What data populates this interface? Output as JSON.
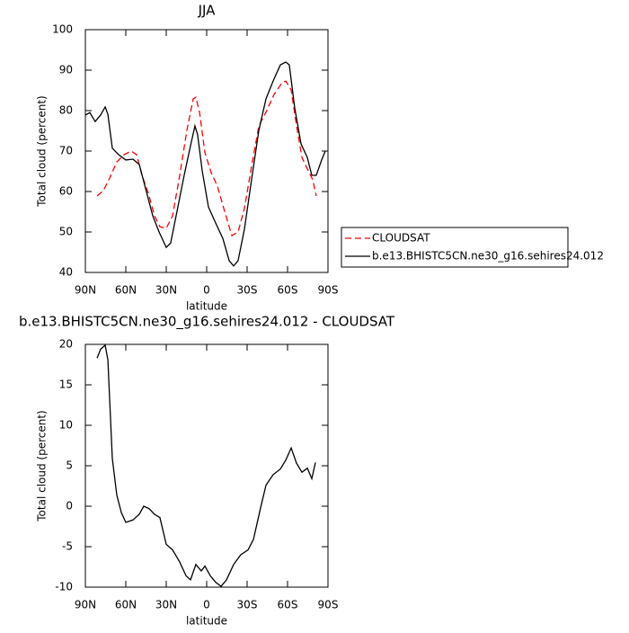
{
  "chart_data": [
    {
      "type": "line",
      "title": "JJA",
      "xlabel": "latitude",
      "ylabel": "Total cloud (percent)",
      "xlim": [
        90,
        -90
      ],
      "ylim": [
        40,
        100
      ],
      "xticks": [
        {
          "value": 90,
          "label": "90N"
        },
        {
          "value": 60,
          "label": "60N"
        },
        {
          "value": 30,
          "label": "30N"
        },
        0,
        {
          "value": -30,
          "label": "30S"
        },
        {
          "value": -60,
          "label": "60S"
        },
        {
          "value": -90,
          "label": "90S"
        }
      ],
      "yticks": [
        40,
        50,
        60,
        70,
        80,
        90,
        100
      ],
      "legend": "right",
      "series": [
        {
          "name": "CLOUDSAT",
          "color": "#ff0000",
          "line_style": "dashed",
          "x": [
            81.3,
            76.7,
            72,
            66.7,
            61.3,
            56,
            52,
            48,
            43.3,
            38.7,
            34.7,
            30,
            25.3,
            20,
            14.7,
            10,
            8,
            5.3,
            1.3,
            -3.3,
            -8,
            -13.3,
            -18.7,
            -23.3,
            -28,
            -33.3,
            -38.7,
            -44,
            -50,
            -56,
            -58.7,
            -62.7,
            -66.7,
            -70.7,
            -74.7,
            -78.7,
            -81.3
          ],
          "values": [
            58.9,
            60.2,
            63.3,
            67.3,
            69.1,
            70,
            69.1,
            64,
            59.6,
            54,
            51.3,
            50.9,
            54,
            64,
            75.1,
            82.9,
            83.3,
            79.6,
            69.6,
            64.7,
            61.3,
            55.1,
            49.1,
            50,
            55.8,
            66.2,
            76.2,
            79.6,
            84,
            86.9,
            87.3,
            85.1,
            76.2,
            68.4,
            65.6,
            62.9,
            58.9
          ]
        },
        {
          "name": "b.e13.BHISTC5CN.ne30_g16.sehires24.012",
          "color": "#000000",
          "line_style": "solid",
          "x": [
            90,
            86.7,
            82.7,
            78.7,
            75.3,
            73.3,
            70,
            65.3,
            60,
            54.7,
            50,
            45.3,
            40,
            35.3,
            30,
            26.7,
            22,
            16.7,
            12,
            8.7,
            6.7,
            3.3,
            -1.3,
            -6.7,
            -12,
            -16.7,
            -20,
            -23.3,
            -28,
            -33.3,
            -38.7,
            -44,
            -49.3,
            -54.7,
            -58.7,
            -61.3,
            -65.3,
            -70,
            -74.7,
            -78,
            -81.3,
            -85.3,
            -88
          ],
          "values": [
            78.9,
            79.5,
            77.3,
            78.9,
            80.9,
            79.1,
            70.7,
            69.1,
            67.8,
            68,
            66.7,
            60.7,
            54,
            50,
            46.2,
            47.3,
            55.1,
            64,
            71.3,
            76.2,
            74,
            65.1,
            56.2,
            52.2,
            48.4,
            42.9,
            41.6,
            42.9,
            50.7,
            62.9,
            75.1,
            82.9,
            87.3,
            91.3,
            92,
            91.3,
            80.7,
            71.8,
            68.4,
            64,
            64,
            67.8,
            70
          ]
        }
      ]
    },
    {
      "type": "line",
      "title": "b.e13.BHISTC5CN.ne30_g16.sehires24.012 - CLOUDSAT",
      "xlabel": "latitude",
      "ylabel": "Total cloud (percent)",
      "xlim": [
        90,
        -90
      ],
      "ylim": [
        -10,
        20
      ],
      "xticks": [
        {
          "value": 90,
          "label": "90N"
        },
        {
          "value": 60,
          "label": "60N"
        },
        {
          "value": 30,
          "label": "30N"
        },
        0,
        {
          "value": -30,
          "label": "30S"
        },
        {
          "value": -60,
          "label": "60S"
        },
        {
          "value": -90,
          "label": "90S"
        }
      ],
      "yticks": [
        -10,
        -5,
        0,
        5,
        10,
        15,
        20
      ],
      "series": [
        {
          "color": "#000000",
          "line_style": "solid",
          "x": [
            81.3,
            78.7,
            75.3,
            73.3,
            70,
            66.7,
            63.3,
            60,
            54.7,
            50,
            46.7,
            42.7,
            38.7,
            34.7,
            30,
            25.3,
            20,
            15.3,
            12,
            8,
            4,
            1.3,
            -2.7,
            -6.7,
            -10.7,
            -14.7,
            -20,
            -25.3,
            -30.7,
            -34.7,
            -40,
            -44,
            -49.3,
            -54.7,
            -58.7,
            -62.7,
            -66.7,
            -70.7,
            -74.7,
            -78,
            -80.7
          ],
          "values": [
            18.3,
            19.4,
            19.9,
            18.1,
            5.9,
            1.4,
            -0.8,
            -2,
            -1.7,
            -1,
            0,
            -0.3,
            -1,
            -1.4,
            -4.7,
            -5.4,
            -6.9,
            -8.6,
            -9.1,
            -7.2,
            -8,
            -7.4,
            -8.6,
            -9.4,
            -9.9,
            -9.1,
            -7.2,
            -6,
            -5.4,
            -4.1,
            -0.2,
            2.6,
            3.9,
            4.6,
            5.7,
            7.2,
            5.3,
            4.2,
            4.7,
            3.4,
            5.4
          ]
        }
      ]
    }
  ]
}
